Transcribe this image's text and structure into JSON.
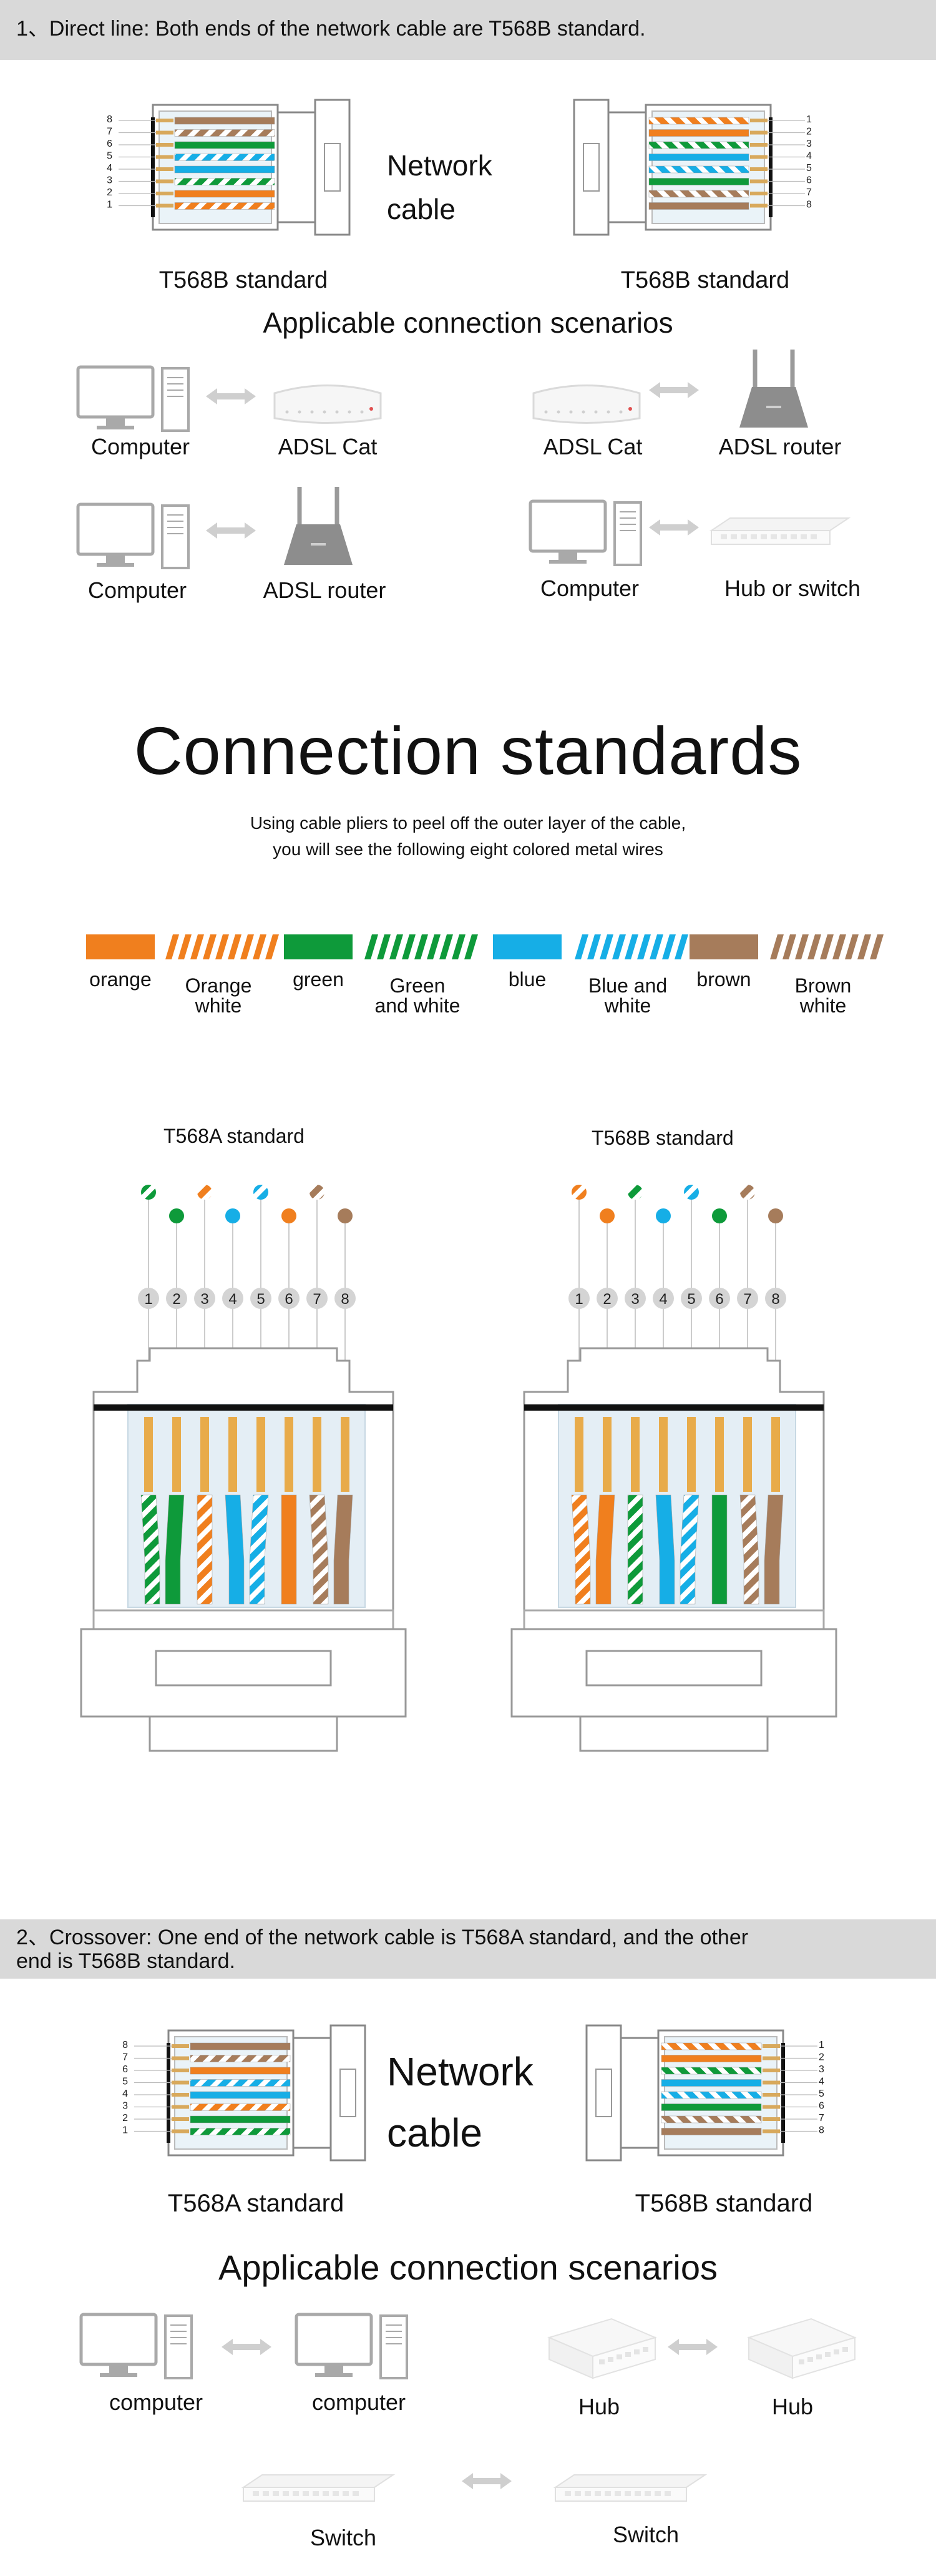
{
  "section1": {
    "heading": "1、Direct line: Both ends of the network cable are T568B standard.",
    "network_label_line1": "Network",
    "network_label_line2": "cable",
    "left_caption": "T568B standard",
    "right_caption": "T568B standard",
    "pin_numbers_left": [
      "8",
      "7",
      "6",
      "5",
      "4",
      "3",
      "2",
      "1"
    ],
    "pin_numbers_right": [
      "1",
      "2",
      "3",
      "4",
      "5",
      "6",
      "7",
      "8"
    ],
    "scenarios_title": "Applicable connection scenarios",
    "scenarios": [
      {
        "a": "Computer",
        "b": "ADSL Cat"
      },
      {
        "a": "ADSL Cat",
        "b": "ADSL router"
      },
      {
        "a": "Computer",
        "b": "ADSL router"
      },
      {
        "a": "Computer",
        "b": "Hub or switch"
      }
    ]
  },
  "standards": {
    "title": "Connection standards",
    "intro_line1": "Using cable pliers to peel off the outer layer of the cable,",
    "intro_line2": "you will see the following eight colored metal wires",
    "swatches": [
      {
        "label": "orange",
        "label2": "",
        "color": "#f07f1e",
        "striped": false
      },
      {
        "label": "Orange",
        "label2": "white",
        "color": "#f07f1e",
        "striped": true
      },
      {
        "label": "green",
        "label2": "",
        "color": "#0e9a3a",
        "striped": false
      },
      {
        "label": "Green",
        "label2": "and white",
        "color": "#0e9a3a",
        "striped": true
      },
      {
        "label": "blue",
        "label2": "",
        "color": "#16aee6",
        "striped": false
      },
      {
        "label": "Blue and",
        "label2": "white",
        "color": "#16aee6",
        "striped": true
      },
      {
        "label": "brown",
        "label2": "",
        "color": "#a67c5b",
        "striped": false
      },
      {
        "label": "Brown",
        "label2": "white",
        "color": "#a67c5b",
        "striped": true
      }
    ],
    "t568a_label": "T568A standard",
    "t568b_label": "T568B standard",
    "pins": [
      "1",
      "2",
      "3",
      "4",
      "5",
      "6",
      "7",
      "8"
    ],
    "t568a_order": [
      "green-white",
      "green",
      "orange-white",
      "blue",
      "blue-white",
      "orange",
      "brown-white",
      "brown"
    ],
    "t568b_order": [
      "orange-white",
      "orange",
      "green-white",
      "blue",
      "blue-white",
      "green",
      "brown-white",
      "brown"
    ]
  },
  "section2": {
    "heading_line1": "2、Crossover: One end of the network cable is T568A standard, and the other",
    "heading_line2": "end is T568B standard.",
    "network_label_line1": "Network",
    "network_label_line2": "cable",
    "left_caption": "T568A standard",
    "right_caption": "T568B standard",
    "pin_numbers_left": [
      "8",
      "7",
      "6",
      "5",
      "4",
      "3",
      "2",
      "1"
    ],
    "pin_numbers_right": [
      "1",
      "2",
      "3",
      "4",
      "5",
      "6",
      "7",
      "8"
    ],
    "scenarios_title": "Applicable connection scenarios",
    "scenarios": [
      {
        "a": "computer",
        "b": "computer"
      },
      {
        "a": "Hub",
        "b": "Hub"
      },
      {
        "a": "Switch",
        "b": "Switch"
      }
    ]
  },
  "colors": {
    "orange": "#f07f1e",
    "green": "#0e9a3a",
    "blue": "#16aee6",
    "brown": "#a67c5b",
    "band": "#d9d9d9"
  }
}
